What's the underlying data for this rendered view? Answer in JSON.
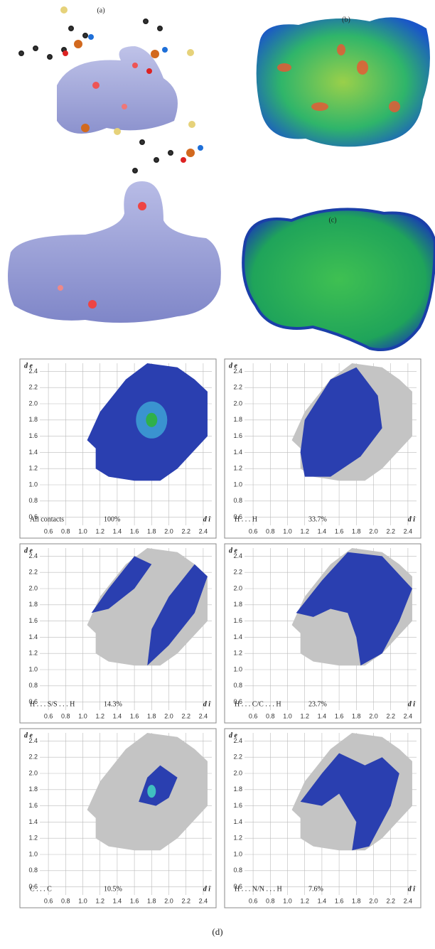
{
  "figure": {
    "panel_labels": {
      "a": "(a)",
      "b": "(b)",
      "c": "(c)",
      "d": "(d)"
    },
    "y_axis_label": "d e",
    "x_axis_label": "d i",
    "ticks": [
      "0.6",
      "0.8",
      "1.0",
      "1.2",
      "1.4",
      "1.6",
      "1.8",
      "2.0",
      "2.2",
      "2.4"
    ],
    "plots": [
      {
        "contact": "All contacts",
        "percent": "100%"
      },
      {
        "contact": "H . . . H",
        "percent": "33.7%"
      },
      {
        "contact": "H . . . S/S . . . H",
        "percent": "14.3%"
      },
      {
        "contact": "H . . . C/C . . . H",
        "percent": "23.7%"
      },
      {
        "contact": "C . . . C",
        "percent": "10.5%"
      },
      {
        "contact": "H . . . N/N . . . H",
        "percent": "7.6%"
      }
    ]
  }
}
